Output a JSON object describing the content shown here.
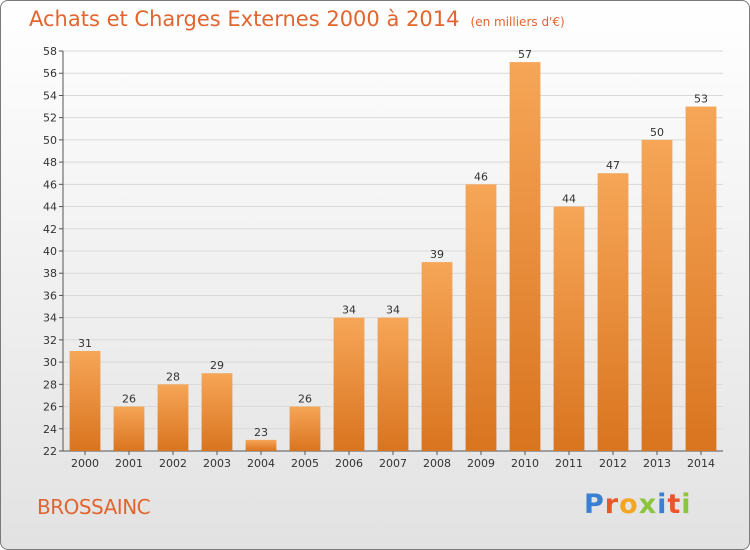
{
  "title": "Achats et Charges Externes 2000 à 2014",
  "subtitle": "(en milliers d'€)",
  "commune": "BROSSAINC",
  "logo": {
    "letters": [
      {
        "ch": "P",
        "color": "#3a7fd1"
      },
      {
        "ch": "r",
        "color": "#e8562a"
      },
      {
        "ch": "o",
        "color": "#f2a623"
      },
      {
        "ch": "x",
        "color": "#8cc43e"
      },
      {
        "ch": "i",
        "color": "#3a7fd1"
      },
      {
        "ch": "t",
        "color": "#e8562a"
      },
      {
        "ch": "i",
        "color": "#8cc43e"
      }
    ]
  },
  "colors": {
    "bar_light": "#f6a657",
    "bar_dark": "#d9741f",
    "grid": "#d9d9d9",
    "axis": "#555555",
    "label": "#333333",
    "title": "#e2652f"
  },
  "chart_data": {
    "type": "bar",
    "categories": [
      "2000",
      "2001",
      "2002",
      "2003",
      "2004",
      "2005",
      "2006",
      "2007",
      "2008",
      "2009",
      "2010",
      "2011",
      "2012",
      "2013",
      "2014"
    ],
    "values": [
      31,
      26,
      28,
      29,
      23,
      26,
      34,
      34,
      39,
      46,
      57,
      44,
      47,
      50,
      53
    ],
    "ylim": [
      22,
      58
    ],
    "ytick_step": 2,
    "grid": true
  }
}
